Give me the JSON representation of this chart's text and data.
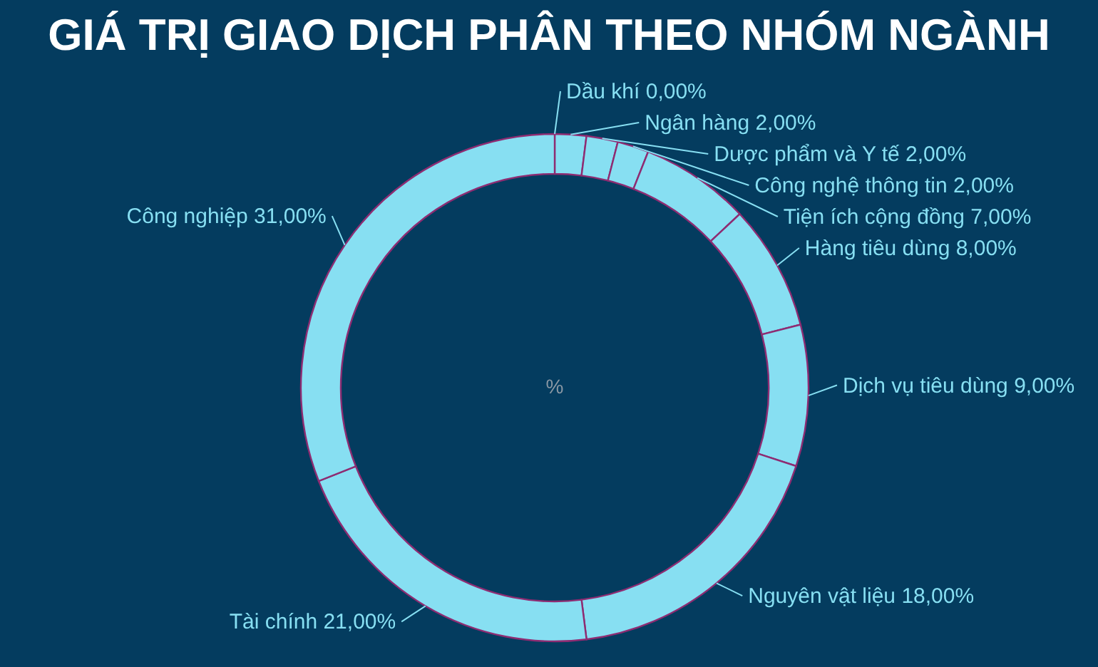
{
  "chart_data": {
    "type": "donut",
    "title": "GIÁ TRỊ GIAO DỊCH PHÂN THEO NHÓM NGÀNH",
    "categories": [
      "Dầu khí",
      "Ngân hàng",
      "Dược phẩm và Y tế",
      "Công nghệ thông tin",
      "Tiện ích cộng đồng",
      "Hàng tiêu dùng",
      "Dịch vụ tiêu dùng",
      "Nguyên vật liệu",
      "Tài chính",
      "Công nghiệp"
    ],
    "values": [
      0,
      2,
      2,
      2,
      7,
      8,
      9,
      18,
      21,
      31
    ],
    "colors": [
      "#87dff2",
      "#87dff2",
      "#87dff2",
      "#87dff2",
      "#87dff2",
      "#87dff2",
      "#87dff2",
      "#87dff2",
      "#87dff2",
      "#87dff2"
    ],
    "value_labels": [
      "0,00%",
      "2,00%",
      "2,00%",
      "2,00%",
      "7,00%",
      "8,00%",
      "9,00%",
      "18,00%",
      "21,00%",
      "31,00%"
    ],
    "annotations": [
      "%"
    ]
  }
}
